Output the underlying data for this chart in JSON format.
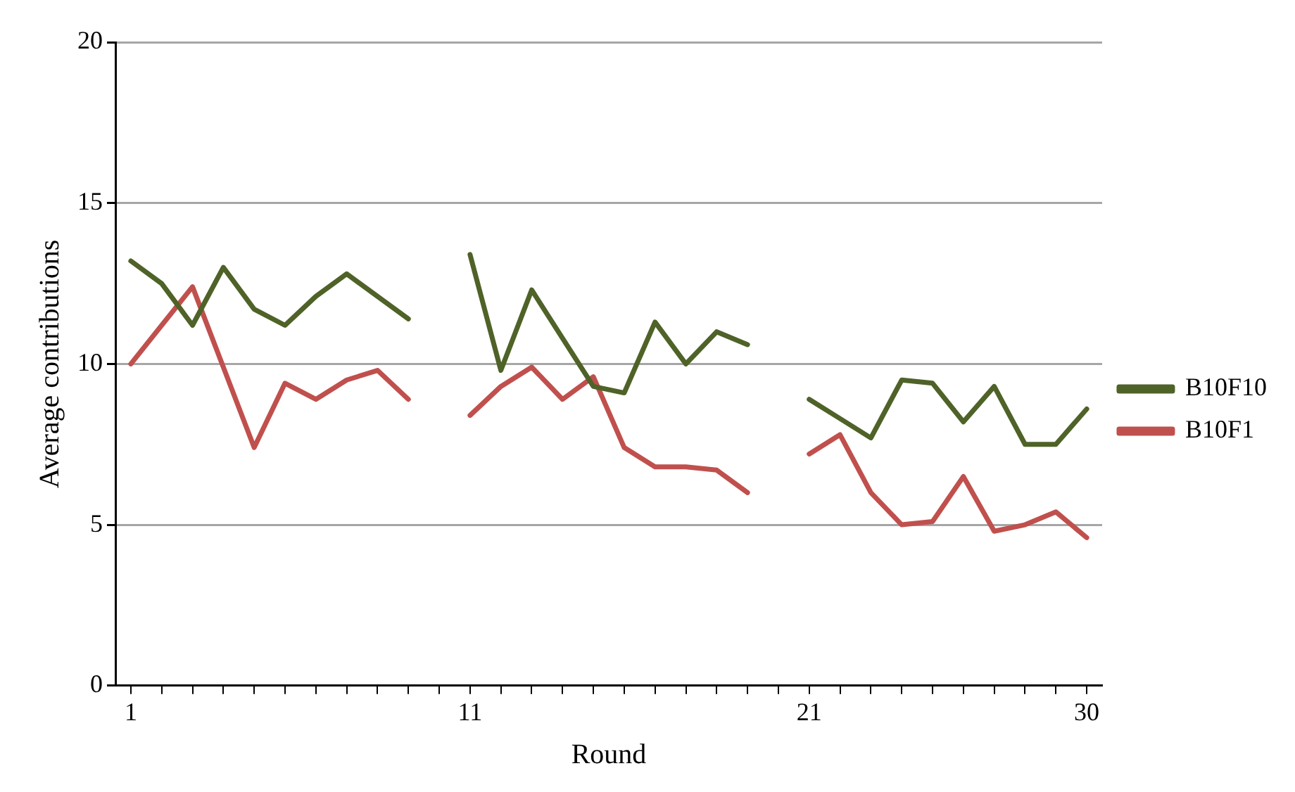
{
  "chart_data": {
    "type": "line",
    "xlabel": "Round",
    "ylabel": "Average contributions",
    "categories": [
      "1",
      null,
      null,
      null,
      null,
      null,
      null,
      null,
      null,
      null,
      null,
      "11",
      null,
      null,
      null,
      null,
      null,
      null,
      null,
      null,
      null,
      null,
      "21",
      null,
      null,
      null,
      null,
      null,
      null,
      null,
      null,
      "30"
    ],
    "series": [
      {
        "name": "B10F10",
        "color": "#4f6228",
        "values": [
          13.2,
          12.5,
          11.2,
          13.0,
          11.7,
          11.2,
          12.1,
          12.8,
          12.1,
          11.4,
          null,
          13.4,
          9.8,
          12.3,
          10.8,
          9.3,
          9.1,
          11.3,
          10.0,
          11.0,
          10.6,
          null,
          8.9,
          8.3,
          7.7,
          9.5,
          9.4,
          8.2,
          9.3,
          7.5,
          7.5,
          8.6
        ]
      },
      {
        "name": "B10F1",
        "color": "#c0504d",
        "values": [
          10.0,
          11.2,
          12.4,
          9.9,
          7.4,
          9.4,
          8.9,
          9.5,
          9.8,
          8.9,
          null,
          8.4,
          9.3,
          9.9,
          8.9,
          9.6,
          7.4,
          6.8,
          6.8,
          6.7,
          6.0,
          null,
          7.2,
          7.8,
          6.0,
          5.0,
          5.1,
          6.5,
          4.8,
          5.0,
          5.4,
          4.6
        ]
      }
    ],
    "ylim": [
      0,
      20
    ],
    "yticks": [
      0,
      5,
      10,
      15,
      20
    ],
    "grid": "y",
    "legend": "right",
    "marker": "none",
    "line_style": "solid"
  }
}
